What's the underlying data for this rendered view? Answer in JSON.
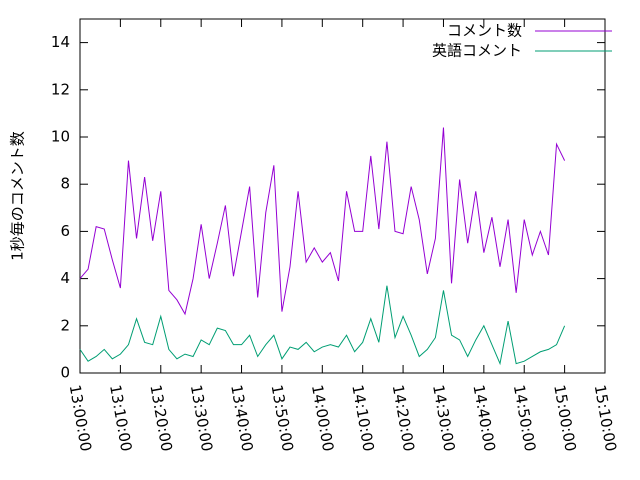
{
  "chart_data": {
    "type": "line",
    "y_label": "1秒毎のコメント数",
    "x": [
      "13:00:00",
      "13:02:00",
      "13:04:00",
      "13:06:00",
      "13:08:00",
      "13:10:00",
      "13:12:00",
      "13:14:00",
      "13:16:00",
      "13:18:00",
      "13:20:00",
      "13:22:00",
      "13:24:00",
      "13:26:00",
      "13:28:00",
      "13:30:00",
      "13:32:00",
      "13:34:00",
      "13:36:00",
      "13:38:00",
      "13:40:00",
      "13:42:00",
      "13:44:00",
      "13:46:00",
      "13:48:00",
      "13:50:00",
      "13:52:00",
      "13:54:00",
      "13:56:00",
      "13:58:00",
      "14:00:00",
      "14:02:00",
      "14:04:00",
      "14:06:00",
      "14:08:00",
      "14:10:00",
      "14:12:00",
      "14:14:00",
      "14:16:00",
      "14:18:00",
      "14:20:00",
      "14:22:00",
      "14:24:00",
      "14:26:00",
      "14:28:00",
      "14:30:00",
      "14:32:00",
      "14:34:00",
      "14:36:00",
      "14:38:00",
      "14:40:00",
      "14:42:00",
      "14:44:00",
      "14:46:00",
      "14:48:00",
      "14:50:00",
      "14:52:00",
      "14:54:00",
      "14:56:00",
      "14:58:00",
      "15:00:00"
    ],
    "series": [
      {
        "name": "コメント数",
        "color": "#9400d3",
        "values": [
          4.0,
          4.4,
          6.2,
          6.1,
          4.8,
          3.6,
          9.0,
          5.7,
          8.3,
          5.6,
          7.7,
          3.5,
          3.1,
          2.5,
          4.0,
          6.3,
          4.0,
          5.5,
          7.1,
          4.1,
          6.0,
          7.9,
          3.2,
          6.8,
          8.8,
          2.6,
          4.5,
          7.7,
          4.7,
          5.3,
          4.7,
          5.1,
          3.9,
          7.7,
          6.0,
          6.0,
          9.2,
          6.1,
          9.8,
          6.0,
          5.9,
          7.9,
          6.5,
          4.2,
          5.7,
          10.4,
          3.8,
          8.2,
          5.5,
          7.7,
          5.1,
          6.6,
          4.5,
          6.5,
          3.4,
          6.5,
          5.0,
          6.0,
          5.0,
          9.7,
          9.0
        ]
      },
      {
        "name": "英語コメント",
        "color": "#009e73",
        "values": [
          1.0,
          0.5,
          0.7,
          1.0,
          0.6,
          0.8,
          1.2,
          2.3,
          1.3,
          1.2,
          2.4,
          1.0,
          0.6,
          0.8,
          0.7,
          1.4,
          1.2,
          1.9,
          1.8,
          1.2,
          1.2,
          1.6,
          0.7,
          1.2,
          1.6,
          0.6,
          1.1,
          1.0,
          1.3,
          0.9,
          1.1,
          1.2,
          1.1,
          1.6,
          0.9,
          1.3,
          2.3,
          1.3,
          3.7,
          1.5,
          2.4,
          1.6,
          0.7,
          1.0,
          1.5,
          3.5,
          1.6,
          1.4,
          0.7,
          1.4,
          2.0,
          1.2,
          0.4,
          2.2,
          0.4,
          0.5,
          0.7,
          0.9,
          1.0,
          1.2,
          2.0
        ]
      }
    ],
    "xlim": [
      "13:00:00",
      "15:10:00"
    ],
    "xticks": [
      "13:00:00",
      "13:10:00",
      "13:20:00",
      "13:30:00",
      "13:40:00",
      "13:50:00",
      "14:00:00",
      "14:10:00",
      "14:20:00",
      "14:30:00",
      "14:40:00",
      "14:50:00",
      "15:00:00",
      "15:10:00"
    ],
    "ylim": [
      0,
      15
    ],
    "yticks": [
      0,
      2,
      4,
      6,
      8,
      10,
      12,
      14
    ],
    "legend": "top-right"
  }
}
